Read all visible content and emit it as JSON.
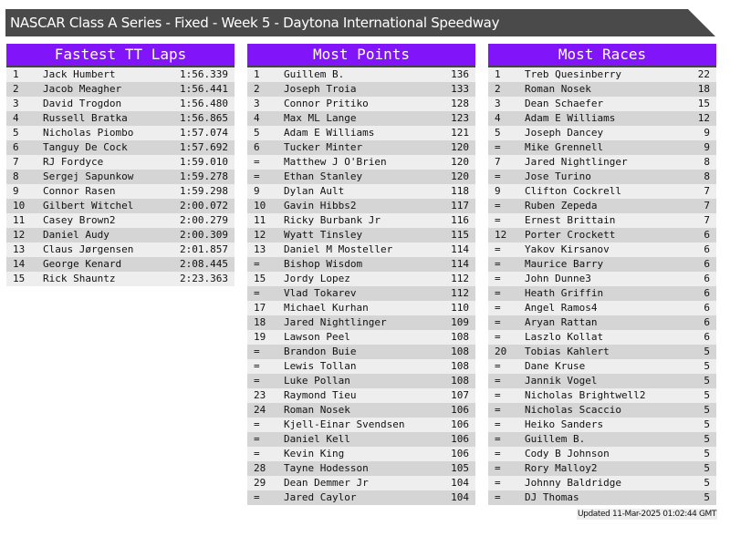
{
  "title": "NASCAR Class A Series - Fixed - Week 5 - Daytona International Speedway",
  "colors": {
    "header": "#8114f8",
    "titlebar": "#4a4a4a",
    "row_light": "#eeeeee",
    "row_dark": "#d5d5d5"
  },
  "panels": [
    {
      "title": "Fastest TT Laps",
      "rows": [
        [
          "1",
          "Jack Humbert",
          "1:56.339"
        ],
        [
          "2",
          "Jacob Meagher",
          "1:56.441"
        ],
        [
          "3",
          "David Trogdon",
          "1:56.480"
        ],
        [
          "4",
          "Russell Bratka",
          "1:56.865"
        ],
        [
          "5",
          "Nicholas Piombo",
          "1:57.074"
        ],
        [
          "6",
          "Tanguy De Cock",
          "1:57.692"
        ],
        [
          "7",
          "RJ Fordyce",
          "1:59.010"
        ],
        [
          "8",
          "Sergej Sapunkow",
          "1:59.278"
        ],
        [
          "9",
          "Connor Rasen",
          "1:59.298"
        ],
        [
          "10",
          "Gilbert Witchel",
          "2:00.072"
        ],
        [
          "11",
          "Casey Brown2",
          "2:00.279"
        ],
        [
          "12",
          "Daniel Audy",
          "2:00.309"
        ],
        [
          "13",
          "Claus Jørgensen",
          "2:01.857"
        ],
        [
          "14",
          "George Kenard",
          "2:08.445"
        ],
        [
          "15",
          "Rick Shauntz",
          "2:23.363"
        ]
      ]
    },
    {
      "title": "Most Points",
      "rows": [
        [
          "1",
          "Guillem B.",
          "136"
        ],
        [
          "2",
          "Joseph Troia",
          "133"
        ],
        [
          "3",
          "Connor Pritiko",
          "128"
        ],
        [
          "4",
          "Max ML Lange",
          "123"
        ],
        [
          "5",
          "Adam E Williams",
          "121"
        ],
        [
          "6",
          "Tucker Minter",
          "120"
        ],
        [
          "=",
          "Matthew J O'Brien",
          "120"
        ],
        [
          "=",
          "Ethan Stanley",
          "120"
        ],
        [
          "9",
          "Dylan Ault",
          "118"
        ],
        [
          "10",
          "Gavin Hibbs2",
          "117"
        ],
        [
          "11",
          "Ricky Burbank Jr",
          "116"
        ],
        [
          "12",
          "Wyatt Tinsley",
          "115"
        ],
        [
          "13",
          "Daniel M Mosteller",
          "114"
        ],
        [
          "=",
          "Bishop Wisdom",
          "114"
        ],
        [
          "15",
          "Jordy Lopez",
          "112"
        ],
        [
          "=",
          "Vlad Tokarev",
          "112"
        ],
        [
          "17",
          "Michael Kurhan",
          "110"
        ],
        [
          "18",
          "Jared Nightlinger",
          "109"
        ],
        [
          "19",
          "Lawson Peel",
          "108"
        ],
        [
          "=",
          "Brandon Buie",
          "108"
        ],
        [
          "=",
          "Lewis Tollan",
          "108"
        ],
        [
          "=",
          "Luke Pollan",
          "108"
        ],
        [
          "23",
          "Raymond Tieu",
          "107"
        ],
        [
          "24",
          "Roman Nosek",
          "106"
        ],
        [
          "=",
          "Kjell-Einar Svendsen",
          "106"
        ],
        [
          "=",
          "Daniel Kell",
          "106"
        ],
        [
          "=",
          "Kevin King",
          "106"
        ],
        [
          "28",
          "Tayne Hodesson",
          "105"
        ],
        [
          "29",
          "Dean Demmer Jr",
          "104"
        ],
        [
          "=",
          "Jared Caylor",
          "104"
        ]
      ]
    },
    {
      "title": "Most Races",
      "rows": [
        [
          "1",
          "Treb Quesinberry",
          "22"
        ],
        [
          "2",
          "Roman Nosek",
          "18"
        ],
        [
          "3",
          "Dean Schaefer",
          "15"
        ],
        [
          "4",
          "Adam E Williams",
          "12"
        ],
        [
          "5",
          "Joseph Dancey",
          "9"
        ],
        [
          "=",
          "Mike Grennell",
          "9"
        ],
        [
          "7",
          "Jared Nightlinger",
          "8"
        ],
        [
          "=",
          "Jose Turino",
          "8"
        ],
        [
          "9",
          "Clifton Cockrell",
          "7"
        ],
        [
          "=",
          "Ruben Zepeda",
          "7"
        ],
        [
          "=",
          "Ernest Brittain",
          "7"
        ],
        [
          "12",
          "Porter Crockett",
          "6"
        ],
        [
          "=",
          "Yakov Kirsanov",
          "6"
        ],
        [
          "=",
          "Maurice Barry",
          "6"
        ],
        [
          "=",
          "John Dunne3",
          "6"
        ],
        [
          "=",
          "Heath Griffin",
          "6"
        ],
        [
          "=",
          "Angel Ramos4",
          "6"
        ],
        [
          "=",
          "Aryan Rattan",
          "6"
        ],
        [
          "=",
          "Laszlo Kollat",
          "6"
        ],
        [
          "20",
          "Tobias Kahlert",
          "5"
        ],
        [
          "=",
          "Dane Kruse",
          "5"
        ],
        [
          "=",
          "Jannik Vogel",
          "5"
        ],
        [
          "=",
          "Nicholas Brightwell2",
          "5"
        ],
        [
          "=",
          "Nicholas Scaccio",
          "5"
        ],
        [
          "=",
          "Heiko Sanders",
          "5"
        ],
        [
          "=",
          "Guillem B.",
          "5"
        ],
        [
          "=",
          "Cody B Johnson",
          "5"
        ],
        [
          "=",
          "Rory Malloy2",
          "5"
        ],
        [
          "=",
          "Johnny Baldridge",
          "5"
        ],
        [
          "=",
          "DJ Thomas",
          "5"
        ]
      ]
    }
  ],
  "updated": "Updated 11-Mar-2025 01:02:44 GMT"
}
